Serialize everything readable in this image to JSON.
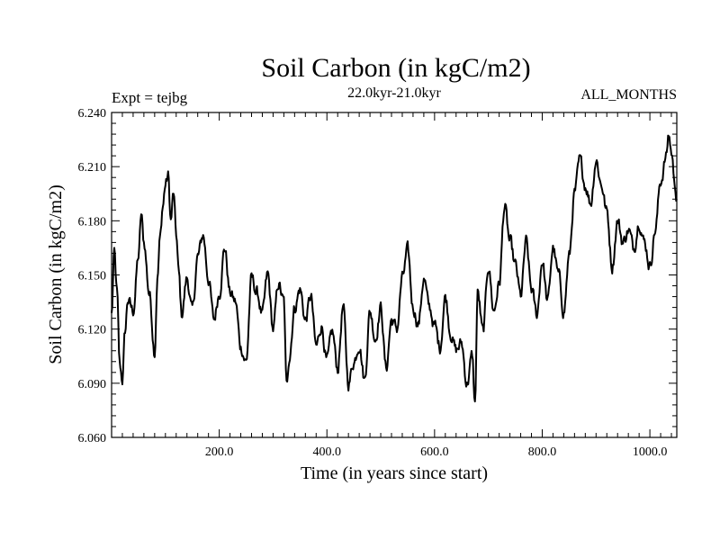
{
  "chart_data": {
    "type": "line",
    "title": "Soil Carbon (in kgC/m2)",
    "subtitle": "22.0kyr-21.0kyr",
    "left_annotation": "Expt = tejbg",
    "right_annotation": "ALL_MONTHS",
    "xlabel": "Time (in years since start)",
    "ylabel": "Soil Carbon (in kgC/m2)",
    "xlim": [
      0,
      1050
    ],
    "ylim": [
      6.06,
      6.24
    ],
    "x_ticks": [
      200,
      400,
      600,
      800,
      1000
    ],
    "x_tick_labels": [
      "200.0",
      "400.0",
      "600.0",
      "800.0",
      "1000.0"
    ],
    "y_ticks": [
      6.06,
      6.09,
      6.12,
      6.15,
      6.18,
      6.21,
      6.24
    ],
    "y_tick_labels": [
      "6.060",
      "6.090",
      "6.120",
      "6.150",
      "6.180",
      "6.210",
      "6.240"
    ],
    "series": [
      {
        "name": "Soil Carbon",
        "color": "#000000",
        "x": [
          0,
          5,
          10,
          15,
          20,
          25,
          30,
          40,
          50,
          55,
          60,
          70,
          80,
          85,
          90,
          95,
          100,
          105,
          110,
          115,
          120,
          125,
          130,
          140,
          150,
          160,
          170,
          180,
          190,
          200,
          210,
          220,
          230,
          240,
          250,
          260,
          270,
          280,
          290,
          300,
          310,
          320,
          325,
          330,
          340,
          350,
          360,
          370,
          380,
          390,
          400,
          410,
          420,
          430,
          440,
          450,
          460,
          470,
          480,
          490,
          500,
          510,
          520,
          530,
          540,
          550,
          560,
          570,
          580,
          590,
          600,
          610,
          620,
          630,
          640,
          650,
          660,
          670,
          675,
          680,
          690,
          700,
          710,
          720,
          730,
          740,
          750,
          760,
          770,
          780,
          790,
          800,
          810,
          820,
          830,
          840,
          850,
          860,
          870,
          880,
          890,
          900,
          910,
          920,
          930,
          940,
          950,
          960,
          970,
          980,
          990,
          1000,
          1010,
          1020,
          1030,
          1035,
          1040,
          1045,
          1050
        ],
        "y": [
          6.128,
          6.162,
          6.14,
          6.1,
          6.092,
          6.118,
          6.136,
          6.13,
          6.16,
          6.183,
          6.168,
          6.14,
          6.108,
          6.148,
          6.17,
          6.188,
          6.2,
          6.205,
          6.18,
          6.195,
          6.172,
          6.15,
          6.128,
          6.148,
          6.13,
          6.16,
          6.172,
          6.148,
          6.125,
          6.14,
          6.165,
          6.14,
          6.135,
          6.11,
          6.102,
          6.148,
          6.14,
          6.128,
          6.15,
          6.12,
          6.145,
          6.135,
          6.088,
          6.105,
          6.132,
          6.142,
          6.125,
          6.138,
          6.11,
          6.122,
          6.102,
          6.118,
          6.098,
          6.132,
          6.09,
          6.102,
          6.112,
          6.092,
          6.13,
          6.115,
          6.132,
          6.098,
          6.125,
          6.12,
          6.148,
          6.163,
          6.132,
          6.123,
          6.148,
          6.132,
          6.122,
          6.11,
          6.138,
          6.118,
          6.108,
          6.112,
          6.09,
          6.105,
          6.078,
          6.14,
          6.118,
          6.155,
          6.13,
          6.145,
          6.188,
          6.168,
          6.155,
          6.138,
          6.168,
          6.142,
          6.128,
          6.158,
          6.135,
          6.165,
          6.15,
          6.13,
          6.16,
          6.195,
          6.213,
          6.2,
          6.19,
          6.214,
          6.2,
          6.185,
          6.155,
          6.18,
          6.168,
          6.175,
          6.165,
          6.18,
          6.168,
          6.155,
          6.175,
          6.202,
          6.215,
          6.228,
          6.218,
          6.205,
          6.192
        ]
      }
    ]
  }
}
